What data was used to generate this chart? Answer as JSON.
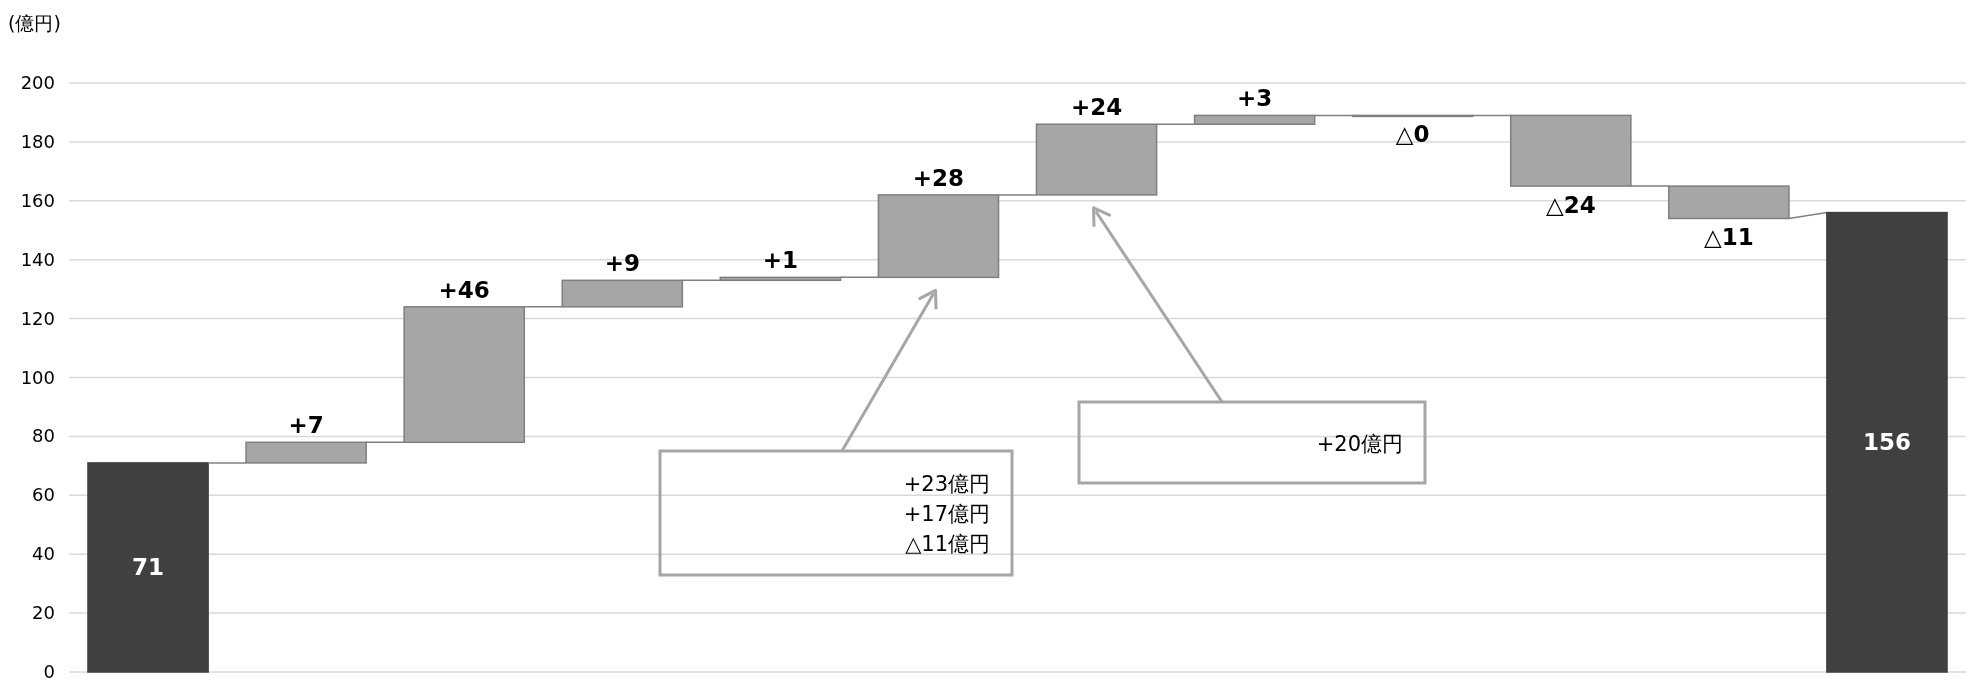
{
  "chart_data": {
    "type": "bar",
    "ylabel": "(億円)",
    "categories": [
      null,
      null,
      null,
      null,
      null,
      null,
      null,
      null,
      null,
      null,
      null,
      null
    ],
    "values": [
      71,
      7,
      46,
      9,
      1,
      28,
      24,
      3,
      0,
      -24,
      -11,
      156
    ],
    "base": [
      0,
      71,
      78,
      124,
      133,
      134,
      162,
      186,
      189,
      189,
      165,
      0
    ],
    "colors": [
      "#404040",
      "#a6a6a6",
      "#a6a6a6",
      "#a6a6a6",
      "#a6a6a6",
      "#a6a6a6",
      "#a6a6a6",
      "#a6a6a6",
      "#a6a6a6",
      "#a6a6a6",
      "#a6a6a6",
      "#404040"
    ],
    "value_labels": [
      "71",
      "+7",
      "+46",
      "+9",
      "+1",
      "+28",
      "+24",
      "+3",
      "△0",
      "△24",
      "△11",
      "156"
    ],
    "ylim": [
      0,
      200
    ],
    "yticks": [
      0,
      20,
      40,
      60,
      80,
      100,
      120,
      140,
      160,
      180,
      200
    ],
    "grid": "y",
    "annotations": [
      "+23億円\n+17億円\n△11億円",
      "+20億円"
    ]
  }
}
